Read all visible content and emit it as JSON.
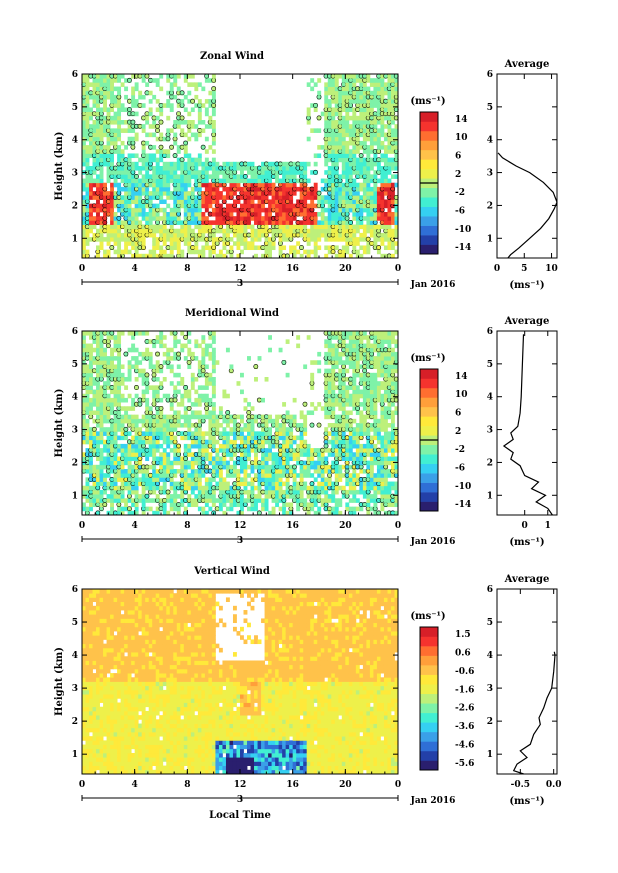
{
  "chart_data": [
    {
      "type": "heatmap",
      "title": "Zonal Wind",
      "ylabel": "Height (km)",
      "x_ticks": [
        "0",
        "4",
        "8",
        "12",
        "16",
        "20",
        "0"
      ],
      "day_label": "3",
      "date_label": "Jan 2016",
      "ylim": [
        0.4,
        6.0
      ],
      "y_ticks": [
        "1",
        "2",
        "3",
        "4",
        "5",
        "6"
      ],
      "colorbar": {
        "unit": "(ms⁻¹)",
        "ticks": [
          "14",
          "10",
          "6",
          "2",
          "-2",
          "-6",
          "-10",
          "-14"
        ]
      },
      "profile": {
        "title": "Average",
        "xlabel": "(ms⁻¹)",
        "x_ticks": [
          "0",
          "5",
          "10"
        ],
        "xlim": [
          0,
          11
        ],
        "y_ticks": [
          "1",
          "2",
          "3",
          "4",
          "5",
          "6"
        ],
        "points": [
          [
            2.0,
            0.4
          ],
          [
            2.5,
            0.5
          ],
          [
            4.0,
            0.7
          ],
          [
            6.0,
            1.0
          ],
          [
            8.0,
            1.3
          ],
          [
            9.5,
            1.6
          ],
          [
            10.5,
            1.9
          ],
          [
            11.0,
            2.1
          ],
          [
            10.3,
            2.4
          ],
          [
            8.5,
            2.7
          ],
          [
            6.0,
            3.0
          ],
          [
            3.5,
            3.2
          ],
          [
            1.0,
            3.45
          ],
          [
            0.2,
            3.6
          ]
        ]
      }
    },
    {
      "type": "heatmap",
      "title": "Meridional Wind",
      "ylabel": "Height (km)",
      "x_ticks": [
        "0",
        "4",
        "8",
        "12",
        "16",
        "20",
        "0"
      ],
      "day_label": "3",
      "date_label": "Jan 2016",
      "ylim": [
        0.4,
        6.0
      ],
      "y_ticks": [
        "1",
        "2",
        "3",
        "4",
        "5",
        "6"
      ],
      "colorbar": {
        "unit": "(ms⁻¹)",
        "ticks": [
          "14",
          "10",
          "6",
          "2",
          "-2",
          "-6",
          "-10",
          "-14"
        ]
      },
      "profile": {
        "title": "Average",
        "xlabel": "(ms⁻¹)",
        "x_ticks": [
          "0",
          "1"
        ],
        "xlim": [
          -1.2,
          1.4
        ],
        "y_ticks": [
          "1",
          "2",
          "3",
          "4",
          "5",
          "6"
        ],
        "points": [
          [
            1.2,
            0.4
          ],
          [
            1.0,
            0.6
          ],
          [
            0.5,
            0.8
          ],
          [
            0.9,
            1.0
          ],
          [
            0.3,
            1.2
          ],
          [
            0.6,
            1.4
          ],
          [
            0.0,
            1.6
          ],
          [
            -0.2,
            1.9
          ],
          [
            -0.6,
            2.1
          ],
          [
            -0.5,
            2.3
          ],
          [
            -0.9,
            2.5
          ],
          [
            -0.5,
            2.7
          ],
          [
            -0.6,
            2.9
          ],
          [
            -0.3,
            3.1
          ],
          [
            -0.2,
            3.5
          ],
          [
            -0.15,
            4.0
          ],
          [
            -0.1,
            5.0
          ],
          [
            -0.05,
            5.9
          ]
        ]
      }
    },
    {
      "type": "heatmap",
      "title": "Vertical Wind",
      "ylabel": "Height (km)",
      "xlabel": "Local Time",
      "x_ticks": [
        "0",
        "4",
        "8",
        "12",
        "16",
        "20",
        "0"
      ],
      "day_label": "3",
      "date_label": "Jan 2016",
      "ylim": [
        0.4,
        6.0
      ],
      "y_ticks": [
        "1",
        "2",
        "3",
        "4",
        "5",
        "6"
      ],
      "colorbar": {
        "unit": "(ms⁻¹)",
        "ticks": [
          "1.5",
          "0.6",
          "-0.6",
          "-1.6",
          "-2.6",
          "-3.6",
          "-4.6",
          "-5.6"
        ]
      },
      "profile": {
        "title": "Average",
        "xlabel": "(ms⁻¹)",
        "x_ticks": [
          "-0.5",
          "0.0"
        ],
        "xlim": [
          -0.85,
          0.05
        ],
        "y_ticks": [
          "1",
          "2",
          "3",
          "4",
          "5",
          "6"
        ],
        "points": [
          [
            -0.45,
            0.4
          ],
          [
            -0.6,
            0.5
          ],
          [
            -0.55,
            0.7
          ],
          [
            -0.4,
            0.9
          ],
          [
            -0.5,
            1.1
          ],
          [
            -0.35,
            1.3
          ],
          [
            -0.3,
            1.6
          ],
          [
            -0.2,
            1.9
          ],
          [
            -0.22,
            2.1
          ],
          [
            -0.15,
            2.4
          ],
          [
            -0.1,
            2.7
          ],
          [
            -0.03,
            3.0
          ],
          [
            0.0,
            3.5
          ],
          [
            0.02,
            4.0
          ],
          [
            0.01,
            4.1
          ]
        ]
      }
    }
  ],
  "colormap": [
    "#2a1f6e",
    "#2340a8",
    "#2f6fd6",
    "#3aa0e8",
    "#35d0f2",
    "#41efd2",
    "#7ef2a8",
    "#bdf07a",
    "#eef04a",
    "#ffe93a",
    "#ffc24a",
    "#ff9f3a",
    "#ff6e30",
    "#f5332e",
    "#d71f28"
  ]
}
